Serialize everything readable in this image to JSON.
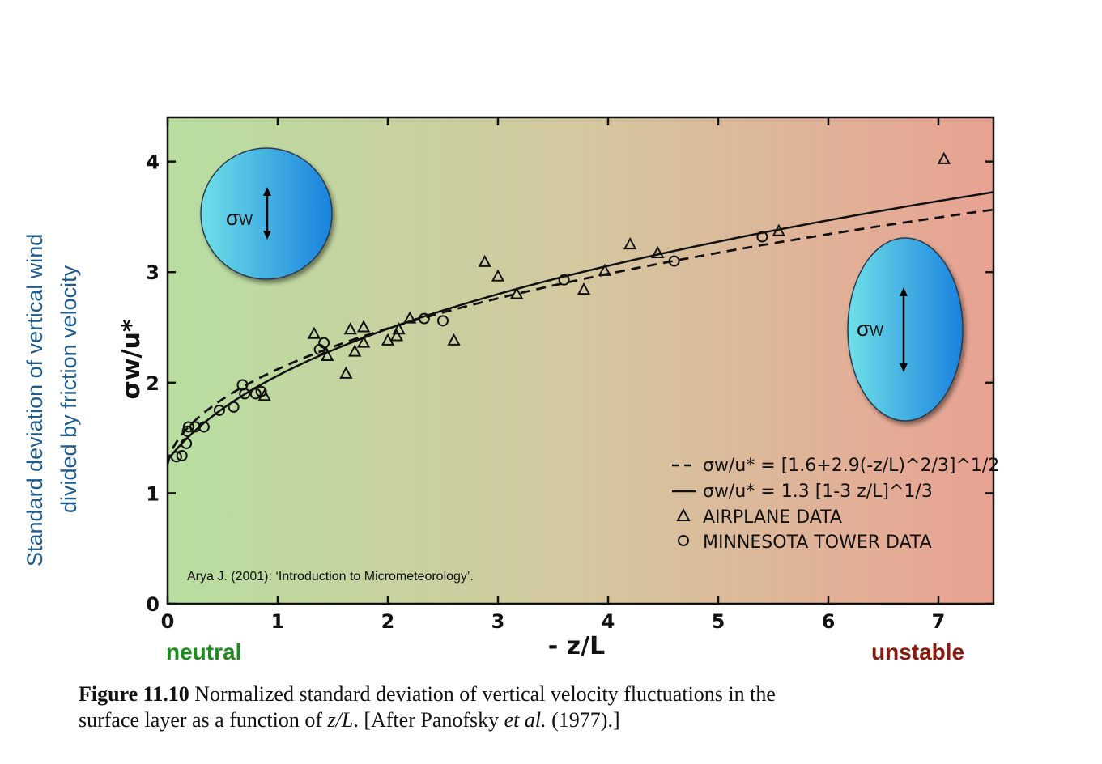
{
  "side_label": {
    "line1": "Standard deviation of vertical wind",
    "line2": "divided by friction velocity",
    "color": "#1f5c8e"
  },
  "regime_labels": {
    "neutral": "neutral",
    "unstable": "unstable"
  },
  "caption": {
    "figure": "Figure 11.10",
    "line1": "Normalized standard deviation of vertical velocity fluctuations in the",
    "line2_a": "surface layer as a function of ",
    "line2_var": "z/L",
    "line2_b": ". [After Panofsky ",
    "line2_etal": "et al.",
    "line2_c": " (1977).]"
  },
  "citation": "Arya J. (2001): ‘Introduction to Micrometeorology’.",
  "bubbles": [
    {
      "label": "σ",
      "sub": "W",
      "shape": "circle"
    },
    {
      "label": "σ",
      "sub": "W",
      "shape": "ellipse"
    }
  ],
  "colors": {
    "bg_left": "#b8dea0",
    "bg_mid": "#d4c8a0",
    "bg_right": "#e8a292",
    "bubble_light": "#6fe0e8",
    "bubble_dark": "#1a82de"
  },
  "chart_data": {
    "type": "scatter",
    "xlabel": "- z/L",
    "ylabel": "σw/u*",
    "xlim": [
      0,
      7.5
    ],
    "ylim": [
      0,
      4.4
    ],
    "xticks": [
      0,
      1,
      2,
      3,
      4,
      5,
      6,
      7
    ],
    "yticks": [
      0,
      1,
      2,
      3,
      4
    ],
    "grid": false,
    "legend_position": "bottom-right",
    "legend": [
      {
        "marker": "dash",
        "text": "σw/u* = [1.6+2.9(-z/L)^2/3]^1/2"
      },
      {
        "marker": "solid",
        "text": "σw/u* = 1.3 [1-3 z/L]^1/3"
      },
      {
        "marker": "triangle",
        "text": "AIRPLANE DATA"
      },
      {
        "marker": "circle",
        "text": "MINNESOTA TOWER DATA"
      }
    ],
    "series": [
      {
        "name": "AIRPLANE DATA",
        "marker": "triangle",
        "points": [
          [
            1.33,
            2.44
          ],
          [
            1.45,
            2.24
          ],
          [
            1.62,
            2.08
          ],
          [
            1.66,
            2.48
          ],
          [
            1.7,
            2.28
          ],
          [
            1.78,
            2.5
          ],
          [
            1.78,
            2.36
          ],
          [
            2.0,
            2.38
          ],
          [
            2.08,
            2.42
          ],
          [
            2.1,
            2.48
          ],
          [
            2.2,
            2.58
          ],
          [
            2.6,
            2.38
          ],
          [
            2.88,
            3.09
          ],
          [
            3.0,
            2.96
          ],
          [
            3.17,
            2.8
          ],
          [
            3.78,
            2.84
          ],
          [
            3.97,
            3.01
          ],
          [
            4.2,
            3.25
          ],
          [
            4.45,
            3.17
          ],
          [
            5.55,
            3.37
          ],
          [
            7.05,
            4.02
          ],
          [
            0.88,
            1.88
          ]
        ]
      },
      {
        "name": "MINNESOTA TOWER DATA",
        "marker": "circle",
        "points": [
          [
            0.08,
            1.33
          ],
          [
            0.13,
            1.34
          ],
          [
            0.17,
            1.45
          ],
          [
            0.18,
            1.56
          ],
          [
            0.19,
            1.6
          ],
          [
            0.25,
            1.6
          ],
          [
            0.33,
            1.6
          ],
          [
            0.47,
            1.75
          ],
          [
            0.6,
            1.78
          ],
          [
            0.68,
            1.98
          ],
          [
            0.7,
            1.9
          ],
          [
            0.8,
            1.9
          ],
          [
            0.85,
            1.92
          ],
          [
            1.38,
            2.3
          ],
          [
            1.42,
            2.36
          ],
          [
            2.33,
            2.58
          ],
          [
            2.5,
            2.56
          ],
          [
            3.6,
            2.93
          ],
          [
            4.6,
            3.1
          ],
          [
            5.4,
            3.32
          ]
        ]
      }
    ]
  }
}
